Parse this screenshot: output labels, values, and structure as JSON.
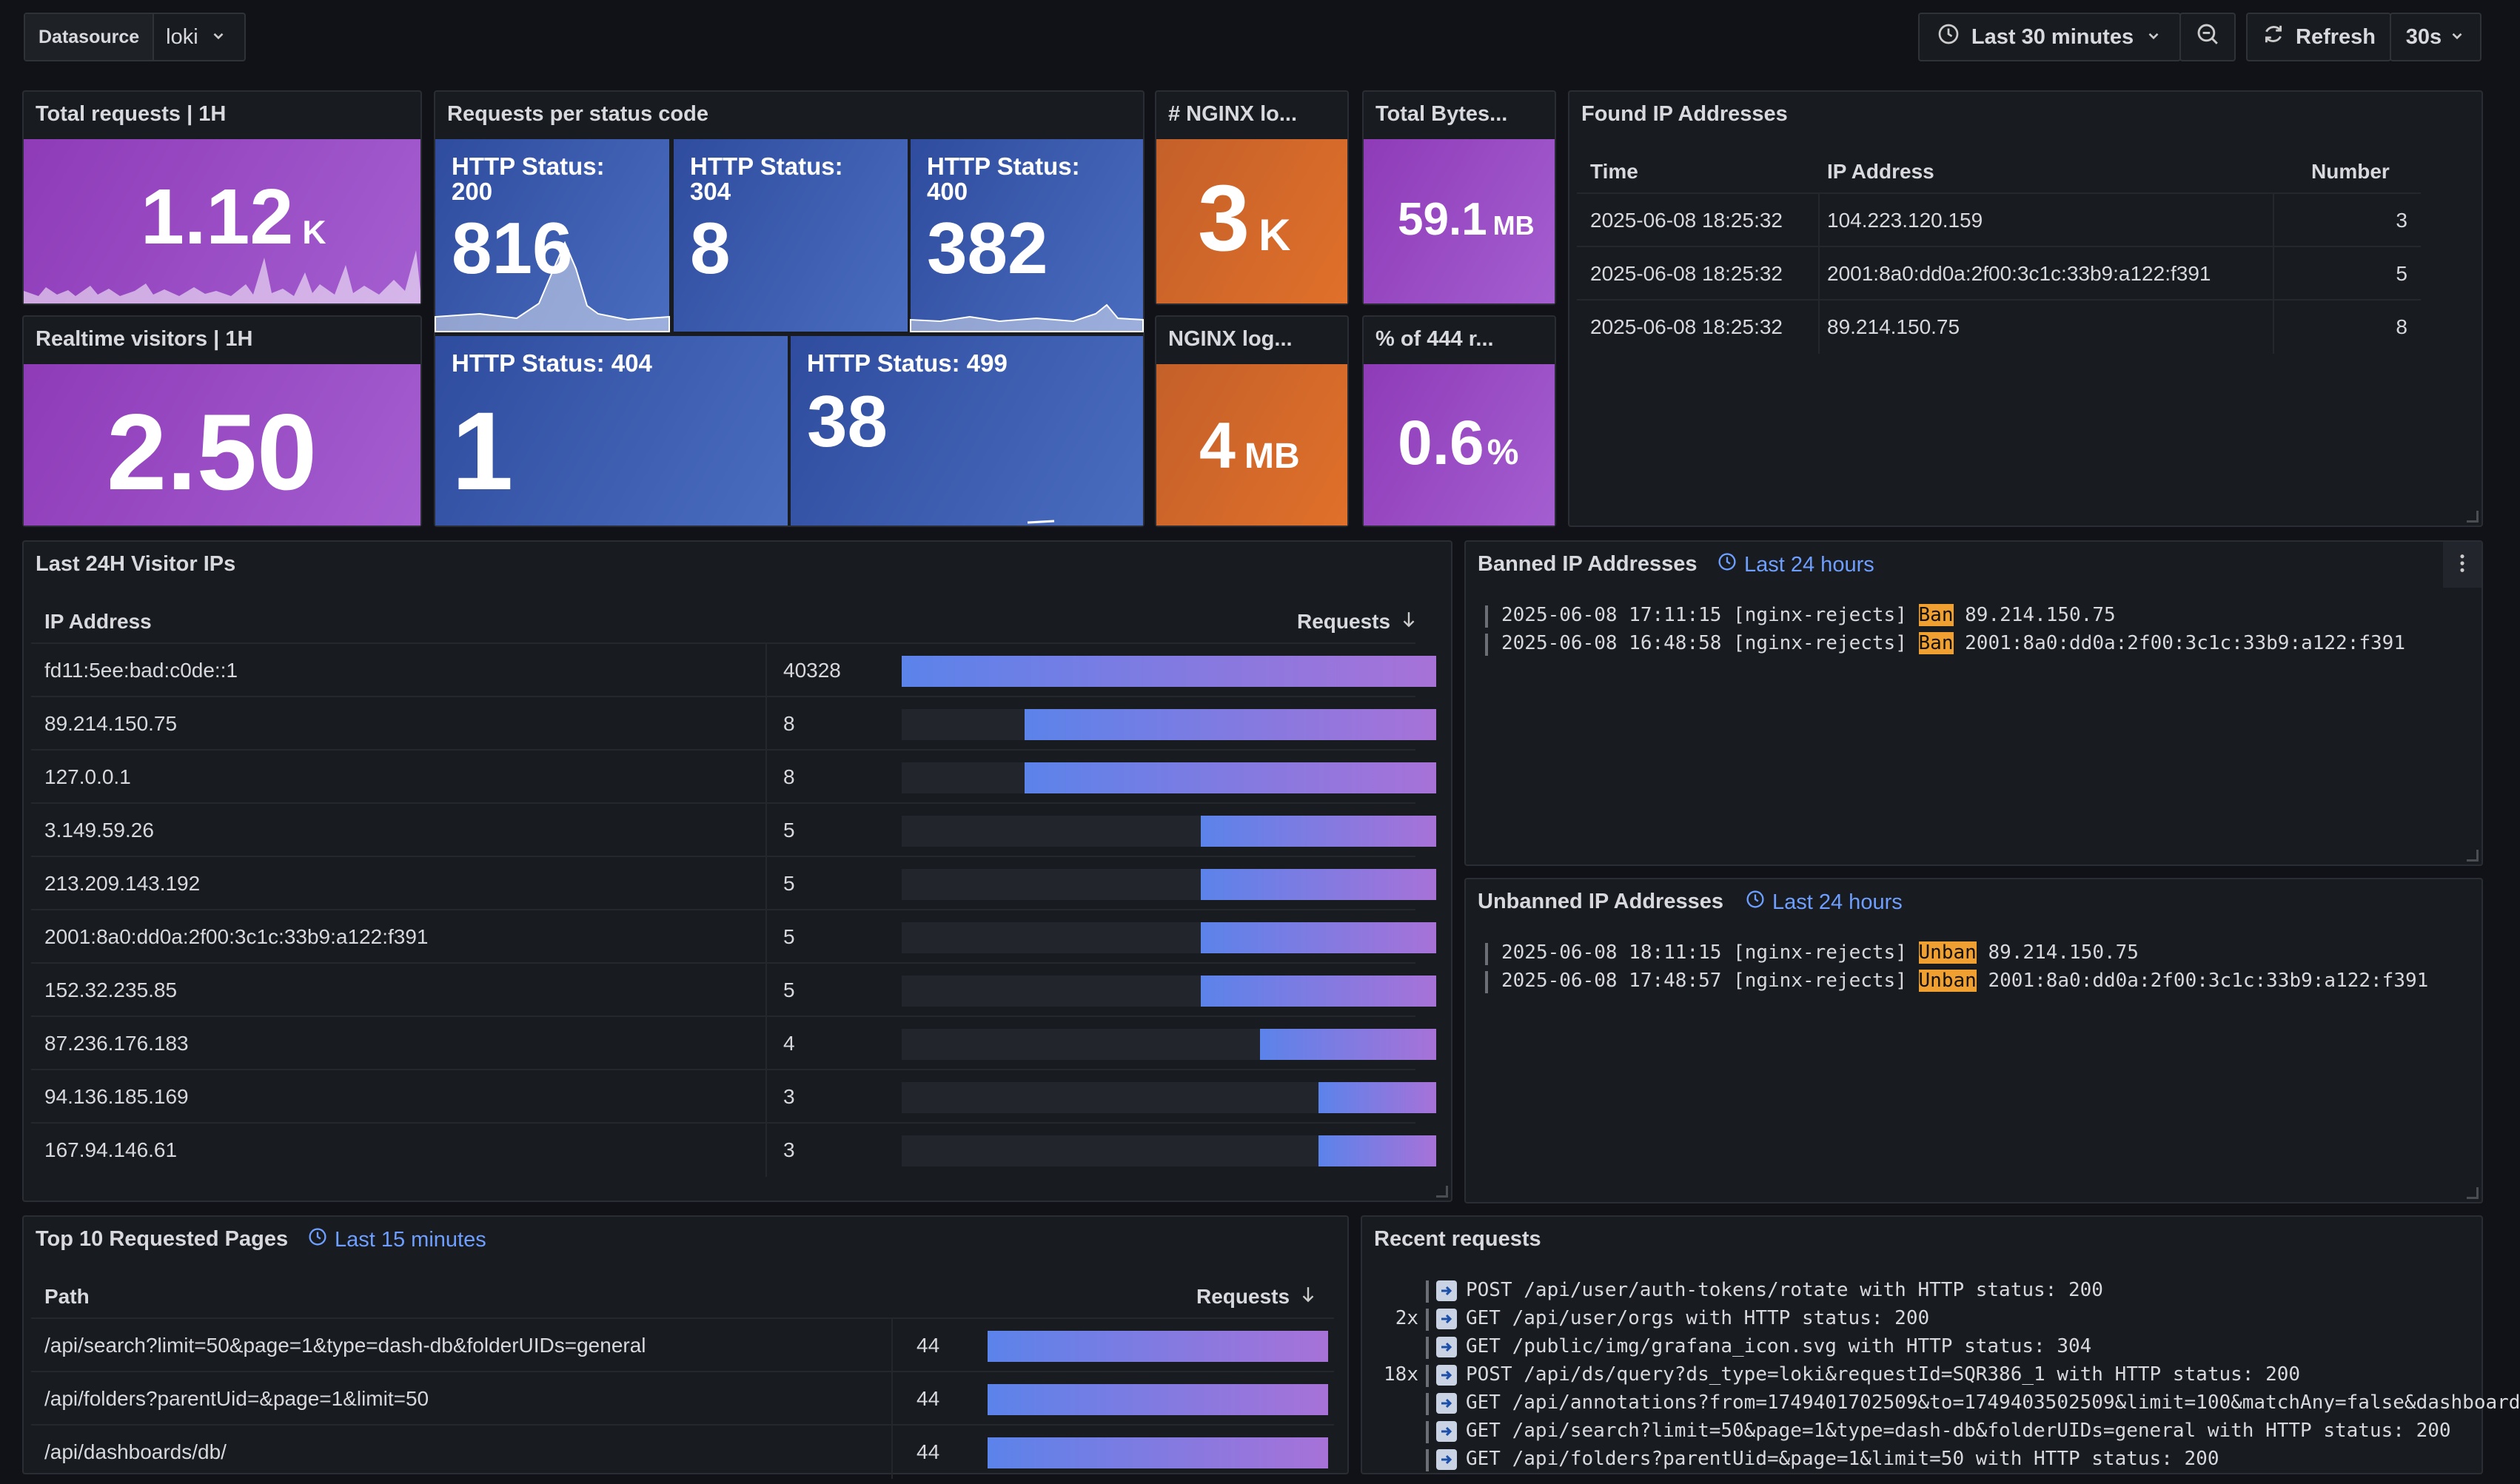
{
  "toolbar": {
    "datasource_label": "Datasource",
    "datasource_value": "loki",
    "time_range": "Last 30 minutes",
    "refresh_label": "Refresh",
    "refresh_interval": "30s"
  },
  "panels": {
    "total_requests": {
      "title": "Total requests | 1H",
      "value": "1.12",
      "unit": "K"
    },
    "realtime_visitors": {
      "title": "Realtime visitors | 1H",
      "value": "2.50"
    },
    "status_codes": {
      "title": "Requests per status code",
      "tiles": [
        {
          "label": "HTTP Status: 200",
          "value": "816"
        },
        {
          "label": "HTTP Status: 304",
          "value": "8"
        },
        {
          "label": "HTTP Status: 400",
          "value": "382"
        },
        {
          "label": "HTTP Status: 404",
          "value": "1"
        },
        {
          "label": "HTTP Status: 499",
          "value": "38"
        }
      ]
    },
    "nginx_logs": {
      "title": "# NGINX lo...",
      "value": "3",
      "unit": "K"
    },
    "nginx_log_size": {
      "title": "NGINX log...",
      "value": "4",
      "unit": "MB"
    },
    "total_bytes": {
      "title": "Total Bytes...",
      "value": "59.1",
      "unit": "MB"
    },
    "pct_444": {
      "title": "% of 444 r...",
      "value": "0.6",
      "unit": "%"
    },
    "found_ips": {
      "title": "Found IP Addresses",
      "columns": [
        "Time",
        "IP Address",
        "Number"
      ],
      "rows": [
        {
          "time": "2025-06-08 18:25:32",
          "ip": "104.223.120.159",
          "number": "3"
        },
        {
          "time": "2025-06-08 18:25:32",
          "ip": "2001:8a0:dd0a:2f00:3c1c:33b9:a122:f391",
          "number": "5"
        },
        {
          "time": "2025-06-08 18:25:32",
          "ip": "89.214.150.75",
          "number": "8"
        }
      ]
    },
    "visitor_ips": {
      "title": "Last 24H Visitor IPs",
      "col_ip": "IP Address",
      "col_requests": "Requests",
      "max": 40328,
      "rows": [
        {
          "ip": "fd11:5ee:bad:c0de::1",
          "requests": "40328",
          "fill": 1.0
        },
        {
          "ip": "89.214.150.75",
          "requests": "8",
          "fill": 0.77
        },
        {
          "ip": "127.0.0.1",
          "requests": "8",
          "fill": 0.77
        },
        {
          "ip": "3.149.59.26",
          "requests": "5",
          "fill": 0.44
        },
        {
          "ip": "213.209.143.192",
          "requests": "5",
          "fill": 0.44
        },
        {
          "ip": "2001:8a0:dd0a:2f00:3c1c:33b9:a122:f391",
          "requests": "5",
          "fill": 0.44
        },
        {
          "ip": "152.32.235.85",
          "requests": "5",
          "fill": 0.44
        },
        {
          "ip": "87.236.176.183",
          "requests": "4",
          "fill": 0.33
        },
        {
          "ip": "94.136.185.169",
          "requests": "3",
          "fill": 0.22
        },
        {
          "ip": "167.94.146.61",
          "requests": "3",
          "fill": 0.22
        }
      ]
    },
    "banned": {
      "title": "Banned IP Addresses",
      "subtitle": "Last 24 hours",
      "lines": [
        {
          "prefix": "2025-06-08 17:11:15 [nginx-rejects] ",
          "tag": "Ban",
          "suffix": " 89.214.150.75"
        },
        {
          "prefix": "2025-06-08 16:48:58 [nginx-rejects] ",
          "tag": "Ban",
          "suffix": " 2001:8a0:dd0a:2f00:3c1c:33b9:a122:f391"
        }
      ]
    },
    "unbanned": {
      "title": "Unbanned IP Addresses",
      "subtitle": "Last 24 hours",
      "lines": [
        {
          "prefix": "2025-06-08 18:11:15 [nginx-rejects] ",
          "tag": "Unban",
          "suffix": " 89.214.150.75"
        },
        {
          "prefix": "2025-06-08 17:48:57 [nginx-rejects] ",
          "tag": "Unban",
          "suffix": " 2001:8a0:dd0a:2f00:3c1c:33b9:a122:f391"
        }
      ]
    },
    "top_pages": {
      "title": "Top 10 Requested Pages",
      "subtitle": "Last 15 minutes",
      "col_path": "Path",
      "col_requests": "Requests",
      "rows": [
        {
          "path": "/api/search?limit=50&page=1&type=dash-db&folderUIDs=general",
          "requests": "44",
          "fill": 1.0
        },
        {
          "path": "/api/folders?parentUid=&page=1&limit=50",
          "requests": "44",
          "fill": 1.0
        },
        {
          "path": "/api/dashboards/db/",
          "requests": "44",
          "fill": 1.0
        }
      ]
    },
    "recent": {
      "title": "Recent requests",
      "lines": [
        {
          "count": "",
          "text": "POST /api/user/auth-tokens/rotate with HTTP status: 200"
        },
        {
          "count": "2x",
          "text": "GET /api/user/orgs with HTTP status: 200"
        },
        {
          "count": "",
          "text": "GET /public/img/grafana_icon.svg with HTTP status: 304"
        },
        {
          "count": "18x",
          "text": "POST /api/ds/query?ds_type=loki&requestId=SQR386_1 with HTTP status: 200"
        },
        {
          "count": "",
          "text": "GET /api/annotations?from=1749401702509&to=1749403502509&limit=100&matchAny=false&dashboard"
        },
        {
          "count": "",
          "text": "GET /api/search?limit=50&page=1&type=dash-db&folderUIDs=general with HTTP status: 200"
        },
        {
          "count": "",
          "text": "GET /api/folders?parentUid=&page=1&limit=50 with HTTP status: 200"
        }
      ]
    }
  },
  "colors": {
    "accent_link": "#6e9fff",
    "highlight": "#f0a030",
    "stat_purple": "#a45ed0",
    "stat_blue": "#4a6dc0",
    "stat_orange": "#e0702a"
  }
}
